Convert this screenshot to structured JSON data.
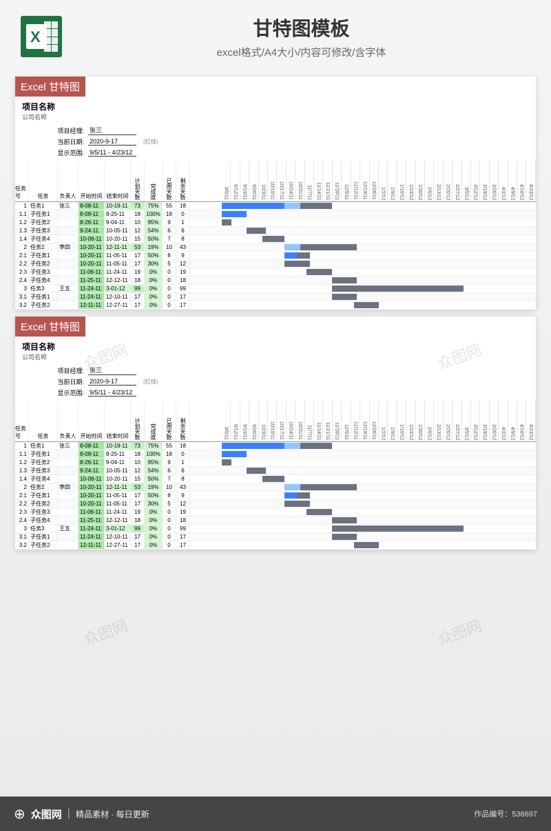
{
  "header": {
    "title": "甘特图模板",
    "subtitle": "excel格式/A4大小/内容可修改/含字体"
  },
  "sheet": {
    "banner": "Excel 甘特图",
    "project_name_label": "项目名称",
    "company_label": "公司名称",
    "pm_label": "项目经理:",
    "pm_value": "张三",
    "date_label": "当前日期:",
    "date_value": "2020-9-17",
    "date_note": "(红线)",
    "range_label": "显示范围:",
    "range_value": "9/5/11 - 4/23/12"
  },
  "columns": {
    "id": "任务号",
    "task": "任务",
    "owner": "负责人",
    "start": "开始时间",
    "end": "结束时间",
    "days": "计划天数",
    "pct": "完成度",
    "used": "已用天数",
    "remain": "剩余天数"
  },
  "dates": [
    "9/5/11",
    "9/12/11",
    "9/19/11",
    "9/26/11",
    "10/3/11",
    "10/10/11",
    "10/17/11",
    "10/24/11",
    "10/31/11",
    "11/7/11",
    "11/14/11",
    "11/21/11",
    "11/28/11",
    "12/5/11",
    "12/12/11",
    "12/19/11",
    "12/26/11",
    "1/2/12",
    "1/9/12",
    "1/16/12",
    "1/23/12",
    "1/30/12",
    "2/6/12",
    "2/13/12",
    "2/20/12",
    "2/27/12",
    "3/5/12",
    "3/12/12",
    "3/19/12",
    "3/26/12",
    "4/2/12",
    "4/9/12",
    "4/16/12",
    "4/23/12"
  ],
  "rows": [
    {
      "id": "1",
      "task": "任务1",
      "owner": "张三",
      "start": "8-08-11",
      "end": "10-19-11",
      "days": "73",
      "pct": "75%",
      "used": "55",
      "remain": "18",
      "hl": true,
      "bars": [
        {
          "l": 0,
          "w": 25,
          "c": "blue"
        },
        {
          "l": 20,
          "w": 8,
          "c": "lblue"
        },
        {
          "l": 25,
          "w": 10,
          "c": "gray"
        }
      ]
    },
    {
      "id": "1.1",
      "task": "子任务1",
      "owner": "",
      "start": "8-08-11",
      "end": "8-25-11",
      "days": "18",
      "pct": "100%",
      "used": "18",
      "remain": "0",
      "bars": [
        {
          "l": 0,
          "w": 8,
          "c": "blue"
        }
      ]
    },
    {
      "id": "1.2",
      "task": "子任务2",
      "owner": "",
      "start": "8-26-11",
      "end": "9-04-11",
      "days": "10",
      "pct": "95%",
      "used": "9",
      "remain": "1",
      "bars": [
        {
          "l": 0,
          "w": 3,
          "c": "gray"
        }
      ]
    },
    {
      "id": "1.3",
      "task": "子任务3",
      "owner": "",
      "start": "9-24-11",
      "end": "10-05-11",
      "days": "12",
      "pct": "54%",
      "used": "6",
      "remain": "6",
      "bars": [
        {
          "l": 8,
          "w": 6,
          "c": "gray"
        }
      ]
    },
    {
      "id": "1.4",
      "task": "子任务4",
      "owner": "",
      "start": "10-06-11",
      "end": "10-20-11",
      "days": "15",
      "pct": "50%",
      "used": "7",
      "remain": "8",
      "bars": [
        {
          "l": 13,
          "w": 7,
          "c": "gray"
        }
      ]
    },
    {
      "id": "2",
      "task": "任务2",
      "owner": "李四",
      "start": "10-20-11",
      "end": "12-11-11",
      "days": "53",
      "pct": "19%",
      "used": "10",
      "remain": "43",
      "hl": true,
      "bars": [
        {
          "l": 20,
          "w": 6,
          "c": "lblue"
        },
        {
          "l": 25,
          "w": 18,
          "c": "gray"
        }
      ]
    },
    {
      "id": "2.1",
      "task": "子任务1",
      "owner": "",
      "start": "10-20-11",
      "end": "11-05-11",
      "days": "17",
      "pct": "50%",
      "used": "8",
      "remain": "9",
      "bars": [
        {
          "l": 20,
          "w": 4,
          "c": "blue"
        },
        {
          "l": 24,
          "w": 4,
          "c": "gray"
        }
      ]
    },
    {
      "id": "2.2",
      "task": "子任务2",
      "owner": "",
      "start": "10-20-11",
      "end": "11-05-11",
      "days": "17",
      "pct": "30%",
      "used": "5",
      "remain": "12",
      "bars": [
        {
          "l": 20,
          "w": 8,
          "c": "gray"
        }
      ]
    },
    {
      "id": "2.3",
      "task": "子任务3",
      "owner": "",
      "start": "11-06-11",
      "end": "11-24-11",
      "days": "19",
      "pct": "0%",
      "used": "0",
      "remain": "19",
      "bars": [
        {
          "l": 27,
          "w": 8,
          "c": "gray"
        }
      ]
    },
    {
      "id": "2.4",
      "task": "子任务4",
      "owner": "",
      "start": "11-25-11",
      "end": "12-12-11",
      "days": "18",
      "pct": "0%",
      "used": "0",
      "remain": "18",
      "bars": [
        {
          "l": 35,
          "w": 8,
          "c": "gray"
        }
      ]
    },
    {
      "id": "3",
      "task": "任务3",
      "owner": "王五",
      "start": "11-24-11",
      "end": "3-01-12",
      "days": "99",
      "pct": "0%",
      "used": "0",
      "remain": "99",
      "hl": true,
      "bars": [
        {
          "l": 35,
          "w": 42,
          "c": "gray"
        }
      ]
    },
    {
      "id": "3.1",
      "task": "子任务1",
      "owner": "",
      "start": "11-24-11",
      "end": "12-10-11",
      "days": "17",
      "pct": "0%",
      "used": "0",
      "remain": "17",
      "bars": [
        {
          "l": 35,
          "w": 8,
          "c": "gray"
        }
      ]
    },
    {
      "id": "3.2",
      "task": "子任务2",
      "owner": "",
      "start": "12-11-11",
      "end": "12-27-11",
      "days": "17",
      "pct": "0%",
      "used": "0",
      "remain": "17",
      "bars": [
        {
          "l": 42,
          "w": 8,
          "c": "gray"
        }
      ]
    }
  ],
  "footer": {
    "logo": "众图网",
    "tagline": "精品素材 · 每日更新",
    "id_label": "作品编号：536697"
  },
  "watermark": "众图网"
}
